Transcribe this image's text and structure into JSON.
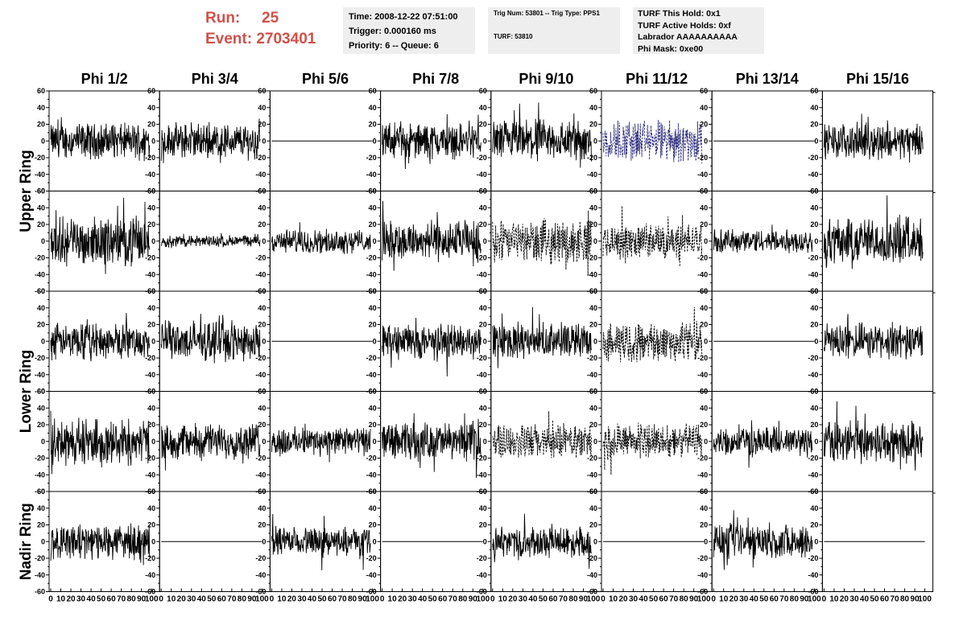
{
  "header": {
    "run_label": "Run:",
    "run_value": "25",
    "event_label": "Event:",
    "event_value": "2703401",
    "time_box": [
      "Time: 2008-12-22 07:51:00",
      "Trigger: 0.000160 ms",
      "Priority: 6 -- Queue: 6"
    ],
    "trig_box": [
      "Trig Num: 53801 -- Trig Type: PPS1",
      "TURF: 53810"
    ],
    "turf_box": [
      "TURF This Hold: 0x1",
      "TURF Active Holds: 0xf",
      "Labrador AAAAAAAAAA",
      "Phi Mask: 0xe00"
    ]
  },
  "colors": {
    "header_text": "#d0504a",
    "box_bg": "#eeeeee",
    "trace": "#000000",
    "trace_highlight": "#2a2a7a"
  },
  "chart_data": {
    "type": "line",
    "column_titles": [
      "Phi 1/2",
      "Phi 3/4",
      "Phi 5/6",
      "Phi 7/8",
      "Phi 9/10",
      "Phi 11/12",
      "Phi 13/14",
      "Phi 15/16"
    ],
    "row_titles": [
      "Upper Ring",
      "Lower Ring",
      "Nadir Ring"
    ],
    "ylim": [
      -60,
      60
    ],
    "xlim": [
      0,
      100
    ],
    "y_ticks": [
      "60",
      "40",
      "20",
      "0",
      "-20",
      "-40",
      "-60"
    ],
    "x_ticks": [
      "0",
      "10",
      "20",
      "30",
      "40",
      "50",
      "60",
      "70",
      "80",
      "90",
      "100"
    ],
    "grid": false,
    "panel_amplitude": [
      [
        15,
        15,
        0,
        15,
        18,
        18,
        0,
        15
      ],
      [
        20,
        5,
        10,
        17,
        18,
        15,
        10,
        20
      ],
      [
        15,
        17,
        0,
        15,
        15,
        17,
        0,
        15
      ],
      [
        20,
        15,
        12,
        16,
        15,
        15,
        12,
        18
      ],
      [
        15,
        0,
        12,
        0,
        13,
        0,
        15,
        0
      ]
    ],
    "panel_style": [
      [
        "solid",
        "solid",
        "solid",
        "solid",
        "solid",
        "dotted",
        "solid",
        "solid"
      ],
      [
        "solid",
        "solid",
        "solid",
        "solid",
        "dotted",
        "dotted",
        "solid",
        "solid"
      ],
      [
        "solid",
        "solid",
        "solid",
        "solid",
        "solid",
        "dotted",
        "solid",
        "solid"
      ],
      [
        "solid",
        "solid",
        "solid",
        "solid",
        "dotted",
        "dotted",
        "solid",
        "solid"
      ],
      [
        "solid",
        "solid",
        "solid",
        "solid",
        "solid",
        "solid",
        "solid",
        "solid"
      ]
    ],
    "highlight_panel": [
      0,
      5
    ]
  }
}
